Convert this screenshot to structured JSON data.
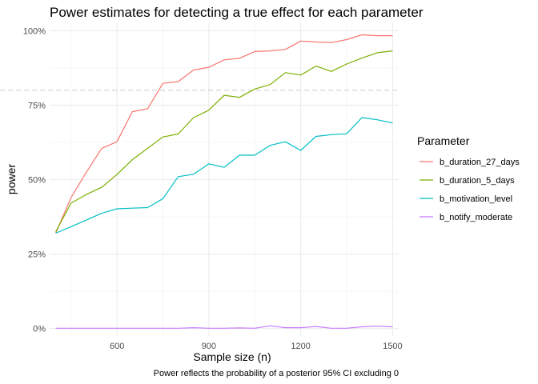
{
  "chart_data": {
    "type": "line",
    "title": "Power estimates for detecting a true effect for each parameter",
    "xlabel": "Sample size (n)",
    "ylabel": "power",
    "caption": "Power reflects the probability of a posterior 95% CI excluding 0",
    "xlim": [
      380,
      1520
    ],
    "ylim": [
      -0.025,
      1.025
    ],
    "x_ticks": [
      600,
      900,
      1200,
      1500
    ],
    "x_tick_labels": [
      "600",
      "900",
      "1200",
      "1500"
    ],
    "y_ticks": [
      0,
      0.25,
      0.5,
      0.75,
      1
    ],
    "y_tick_labels": [
      "0%",
      "25%",
      "50%",
      "75%",
      "100%"
    ],
    "reference_line": {
      "y": 0.8,
      "style": "dashed"
    },
    "grid": true,
    "legend": {
      "title": "Parameter",
      "position": "right"
    },
    "x": [
      400,
      450,
      500,
      550,
      600,
      650,
      700,
      750,
      800,
      850,
      900,
      950,
      1000,
      1050,
      1100,
      1150,
      1200,
      1250,
      1300,
      1350,
      1400,
      1450,
      1500
    ],
    "series": [
      {
        "name": "b_duration_27_days",
        "color": "#F8766D",
        "values": [
          0.32,
          0.44,
          0.525,
          0.605,
          0.627,
          0.728,
          0.738,
          0.823,
          0.829,
          0.868,
          0.877,
          0.902,
          0.907,
          0.93,
          0.932,
          0.937,
          0.965,
          0.962,
          0.96,
          0.97,
          0.986,
          0.983,
          0.983
        ]
      },
      {
        "name": "b_duration_5_days",
        "color": "#7CAE00",
        "values": [
          0.325,
          0.421,
          0.45,
          0.474,
          0.517,
          0.567,
          0.605,
          0.643,
          0.653,
          0.708,
          0.733,
          0.783,
          0.776,
          0.804,
          0.819,
          0.859,
          0.851,
          0.881,
          0.863,
          0.888,
          0.908,
          0.926,
          0.932
        ]
      },
      {
        "name": "b_motivation_level",
        "color": "#00BFC4",
        "values": [
          0.32,
          0.342,
          0.364,
          0.387,
          0.402,
          0.404,
          0.406,
          0.436,
          0.51,
          0.518,
          0.553,
          0.541,
          0.582,
          0.582,
          0.615,
          0.627,
          0.598,
          0.645,
          0.651,
          0.654,
          0.708,
          0.701,
          0.69
        ]
      },
      {
        "name": "b_notify_moderate",
        "color": "#C77CFF",
        "values": [
          0.001,
          0.001,
          0.001,
          0.001,
          0.001,
          0.001,
          0.001,
          0.001,
          0.001,
          0.003,
          0.001,
          0.001,
          0.002,
          0.001,
          0.009,
          0.003,
          0.003,
          0.007,
          0.001,
          0.001,
          0.006,
          0.008,
          0.006
        ]
      }
    ]
  }
}
